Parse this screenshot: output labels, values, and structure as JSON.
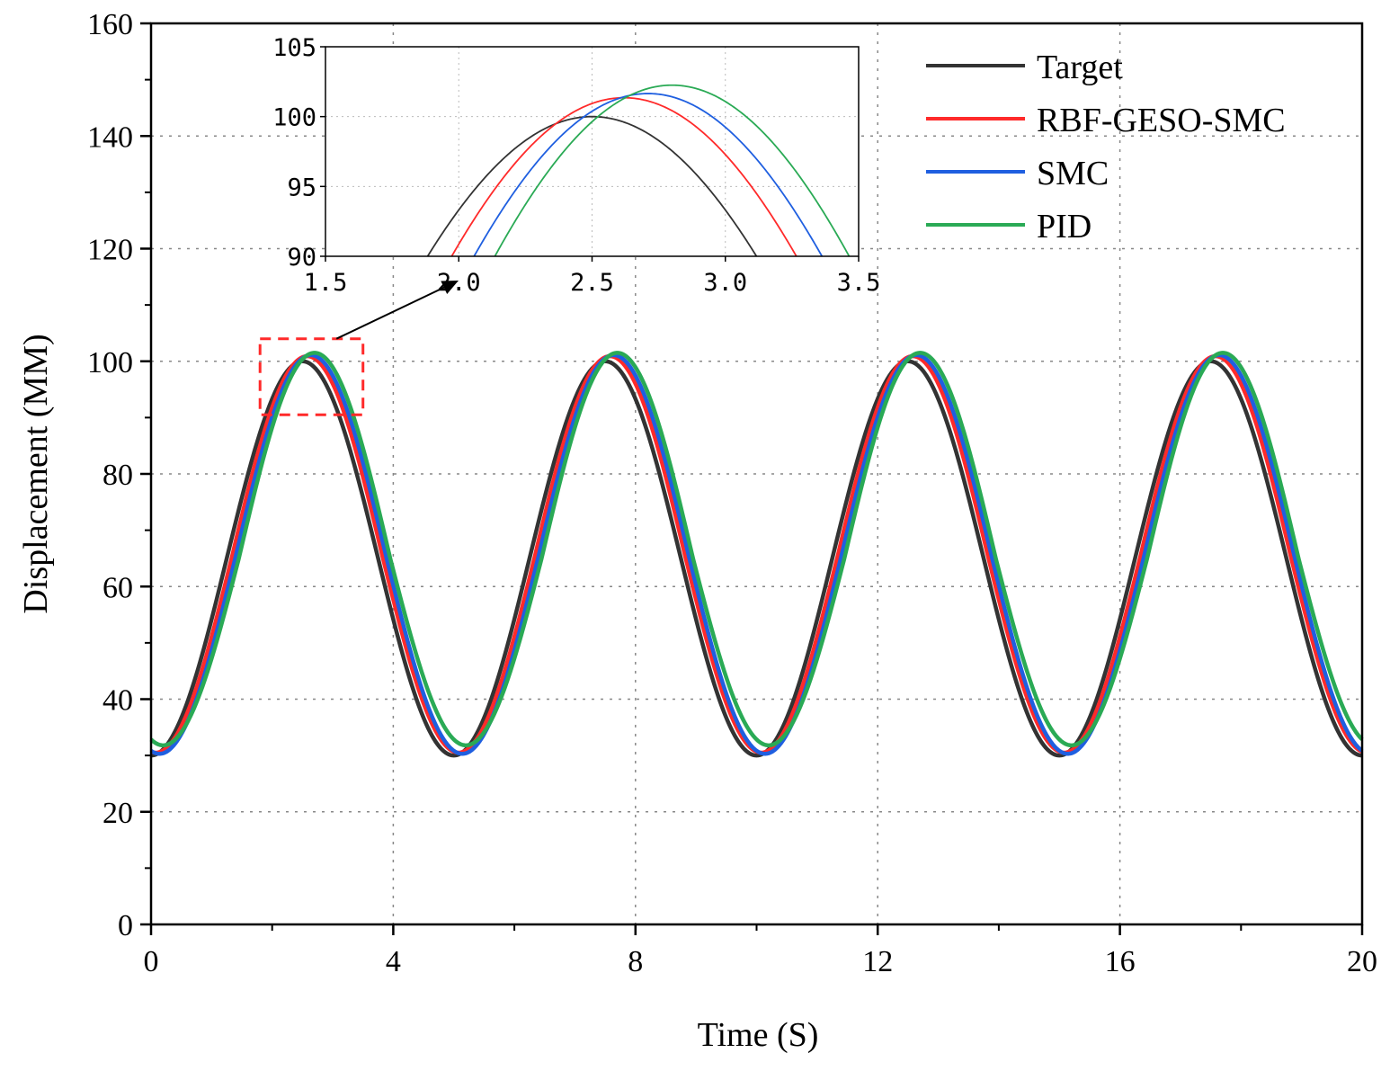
{
  "chart_data": {
    "type": "line",
    "title": "",
    "xlabel": "Time (S)",
    "ylabel": "Displacement (MM)",
    "xlim": [
      0,
      20
    ],
    "ylim": [
      0,
      160
    ],
    "x_ticks": [
      0,
      4,
      8,
      12,
      16,
      20
    ],
    "y_ticks": [
      0,
      20,
      40,
      60,
      80,
      100,
      120,
      140,
      160
    ],
    "x_tick_labels": [
      "0",
      "4",
      "8",
      "12",
      "16",
      "20"
    ],
    "y_tick_labels": [
      "0",
      "20",
      "40",
      "60",
      "80",
      "100",
      "120",
      "140",
      "160"
    ],
    "grid": true,
    "legend_position": "top-right",
    "signal": {
      "offset": 65,
      "amplitude": 35,
      "period": 5,
      "phase_peak": 2.5
    },
    "series": [
      {
        "name": "Target",
        "color": "#333333",
        "lag": 0.0,
        "peak_overshoot": 0.0,
        "valley_offset": 0.0
      },
      {
        "name": "RBF-GESO-SMC",
        "color": "#ff2a2a",
        "lag": 0.08,
        "peak_overshoot": 0.9,
        "valley_offset": 0.5
      },
      {
        "name": "SMC",
        "color": "#1f5fe0",
        "lag": 0.14,
        "peak_overshoot": 1.1,
        "valley_offset": 0.3
      },
      {
        "name": "PID",
        "color": "#2aaa55",
        "lag": 0.2,
        "peak_overshoot": 1.5,
        "valley_offset": 1.8
      }
    ],
    "zoom_box": {
      "x_range": [
        1.8,
        3.5
      ],
      "y_range": [
        90.5,
        104
      ]
    },
    "inset": {
      "xlim": [
        1.5,
        3.5
      ],
      "ylim": [
        90,
        105
      ],
      "x_ticks": [
        1.5,
        2.0,
        2.5,
        3.0,
        3.5
      ],
      "y_ticks": [
        90,
        95,
        100,
        105
      ],
      "x_tick_labels": [
        "1.5",
        "2.0",
        "2.5",
        "3.0",
        "3.5"
      ],
      "y_tick_labels": [
        "90",
        "95",
        "100",
        "105"
      ],
      "zoom_scale": 1.5
    }
  }
}
